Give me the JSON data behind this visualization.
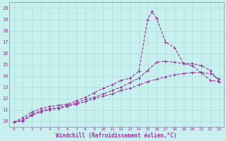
{
  "xlabel": "Windchill (Refroidissement éolien,°C)",
  "bg_color": "#c8f0ee",
  "grid_color": "#aadddb",
  "line_color": "#993399",
  "spine_color": "#8888aa",
  "xlim": [
    -0.5,
    23.5
  ],
  "ylim": [
    9.5,
    20.5
  ],
  "xticks": [
    0,
    1,
    2,
    3,
    4,
    5,
    6,
    7,
    8,
    9,
    10,
    11,
    12,
    13,
    14,
    15,
    16,
    17,
    18,
    19,
    20,
    21,
    22,
    23
  ],
  "yticks": [
    10,
    11,
    12,
    13,
    14,
    15,
    16,
    17,
    18,
    19,
    20
  ],
  "line1_x": [
    0,
    1,
    2,
    3,
    4,
    5,
    6,
    7,
    8,
    9,
    10,
    11,
    12,
    13,
    14,
    15,
    15.5,
    16,
    17,
    18,
    19,
    20,
    21,
    22,
    23
  ],
  "line1_y": [
    9.9,
    10.3,
    10.8,
    11.1,
    11.3,
    11.4,
    11.5,
    11.8,
    12.1,
    12.5,
    12.9,
    13.2,
    13.6,
    13.8,
    14.4,
    19.0,
    19.7,
    19.1,
    17.0,
    16.5,
    15.1,
    14.9,
    14.3,
    13.6,
    13.5
  ],
  "line2_x": [
    0,
    1,
    2,
    3,
    4,
    5,
    6,
    7,
    8,
    9,
    10,
    11,
    12,
    13,
    14,
    15,
    16,
    17,
    18,
    19,
    20,
    21,
    22,
    23
  ],
  "line2_y": [
    9.9,
    10.1,
    10.6,
    10.9,
    11.1,
    11.2,
    11.4,
    11.6,
    11.9,
    12.1,
    12.4,
    12.7,
    13.0,
    13.4,
    13.8,
    14.5,
    15.2,
    15.3,
    15.2,
    15.1,
    15.1,
    14.9,
    14.5,
    13.5
  ],
  "line3_x": [
    0,
    1,
    2,
    3,
    4,
    5,
    6,
    7,
    8,
    9,
    10,
    11,
    12,
    13,
    14,
    15,
    16,
    17,
    18,
    19,
    20,
    21,
    22,
    23
  ],
  "line3_y": [
    9.9,
    10.0,
    10.5,
    10.8,
    11.0,
    11.1,
    11.3,
    11.5,
    11.7,
    12.0,
    12.2,
    12.4,
    12.7,
    12.9,
    13.2,
    13.5,
    13.7,
    13.9,
    14.1,
    14.2,
    14.3,
    14.3,
    14.2,
    13.7
  ]
}
